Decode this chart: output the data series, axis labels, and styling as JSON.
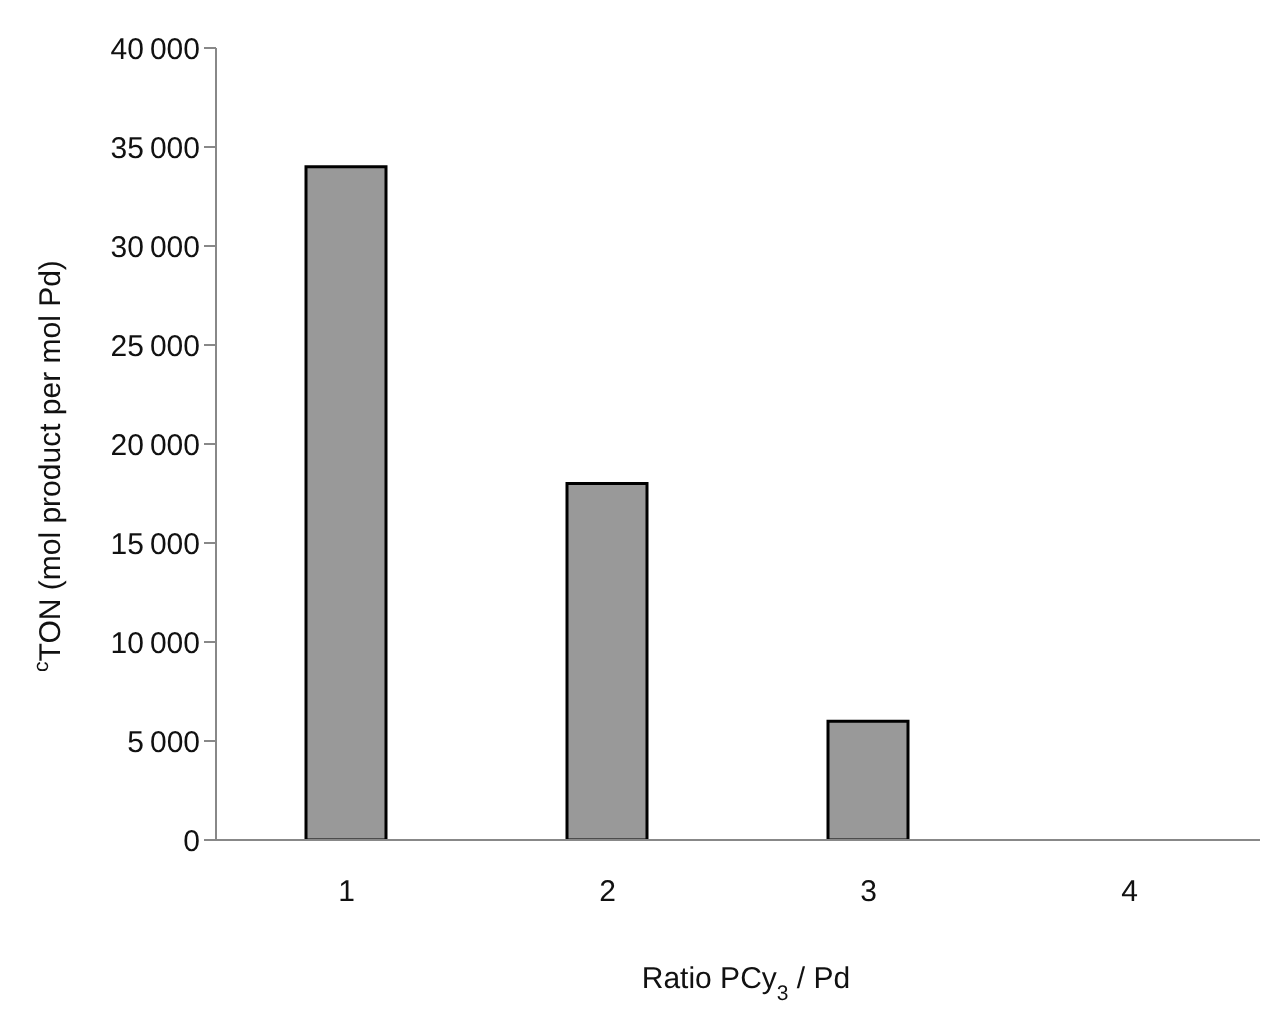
{
  "chart_data": {
    "type": "bar",
    "xlabel": "Ratio PCy$_{3}$ / Pd",
    "ylabel": "$^{c}$TON (mol product per mol Pd)",
    "categories": [
      "1",
      "2",
      "3",
      "4"
    ],
    "series": [
      {
        "color": "#999999",
        "values": [
          34000,
          18000,
          6000,
          0
        ]
      }
    ],
    "ylim": [
      0,
      40000
    ],
    "yticks": [
      0,
      5000,
      10000,
      15000,
      20000,
      25000,
      30000,
      35000,
      40000
    ],
    "grid": false,
    "legend": false
  }
}
